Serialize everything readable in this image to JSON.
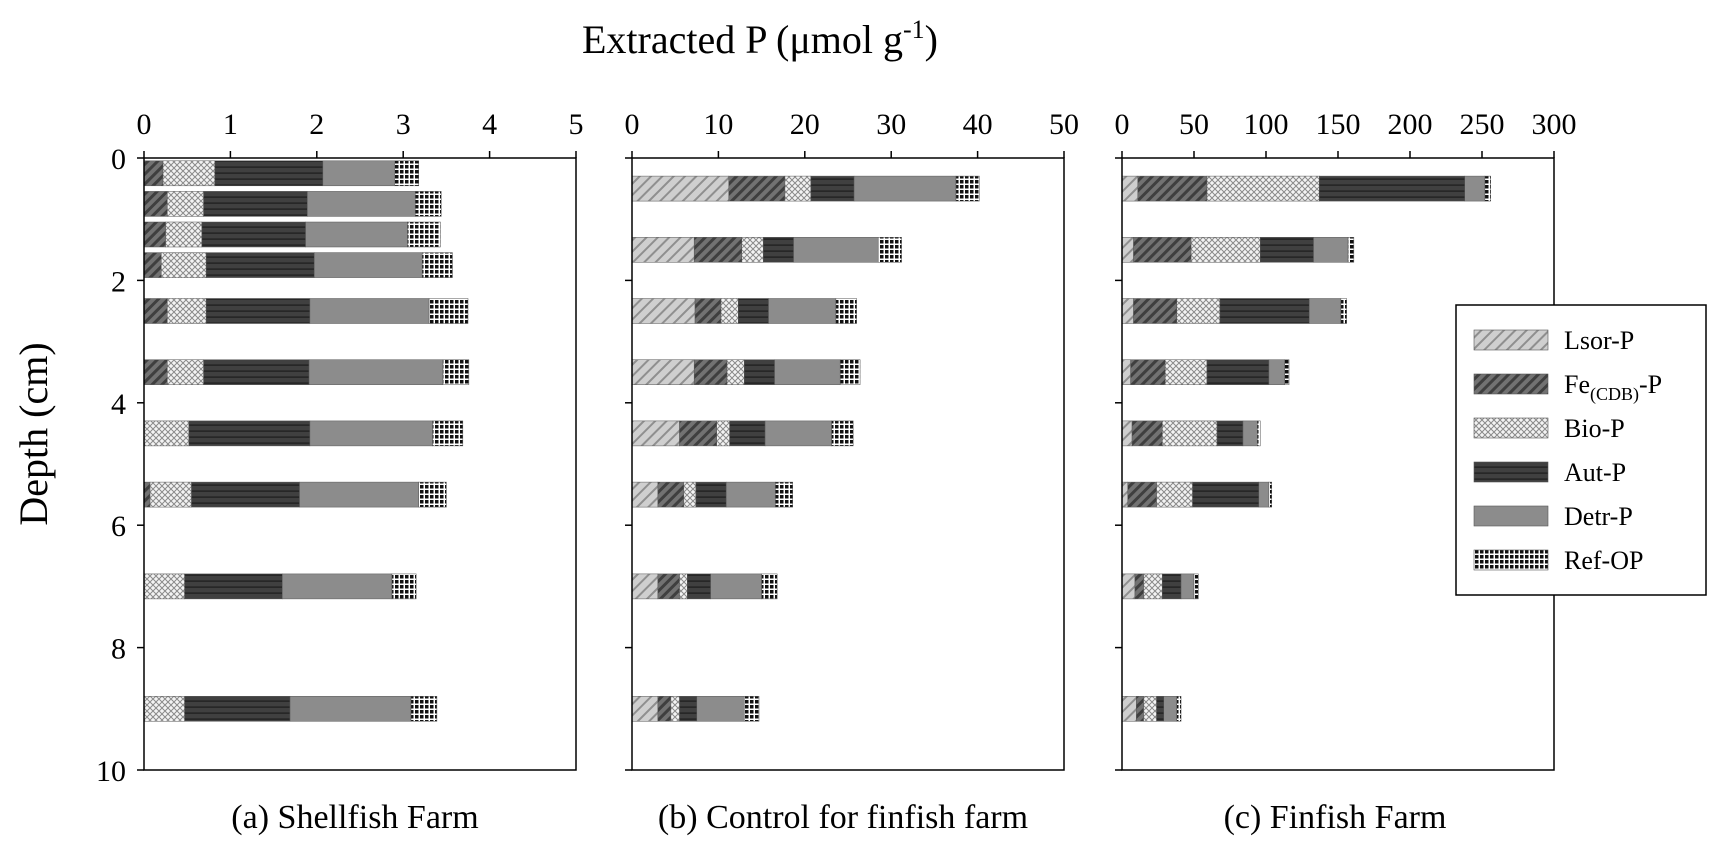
{
  "figure": {
    "title_main": "Extracted P (μmol g",
    "title_sup": "-1",
    "title_close": ")",
    "ylabel": "Depth (cm)"
  },
  "legend": [
    {
      "key": "lsor",
      "prefix": "Lsor-P",
      "sub": "",
      "suffix": ""
    },
    {
      "key": "fe",
      "prefix": "Fe",
      "sub": "(CDB)",
      "suffix": "-P"
    },
    {
      "key": "bio",
      "prefix": "Bio-P",
      "sub": "",
      "suffix": ""
    },
    {
      "key": "aut",
      "prefix": "Aut-P",
      "sub": "",
      "suffix": ""
    },
    {
      "key": "detr",
      "prefix": "Detr-P",
      "sub": "",
      "suffix": ""
    },
    {
      "key": "ref",
      "prefix": "Ref-OP",
      "sub": "",
      "suffix": ""
    }
  ],
  "colors": {
    "lsor": "#c8c8c8",
    "fe": "#6e6e6e",
    "bio": "#f0f0f0",
    "aut": "#3c3c3c",
    "detr": "#8a8a8a",
    "ref": "#1a1a1a"
  },
  "chart_data": [
    {
      "type": "bar",
      "orientation": "horizontal",
      "stacked": true,
      "label": "(a) Shellfish Farm",
      "xlim": [
        0,
        5
      ],
      "xticks": [
        "0",
        "1",
        "2",
        "3",
        "4",
        "5"
      ],
      "ylim": [
        0,
        10
      ],
      "yticks": [
        "0",
        "2",
        "4",
        "6",
        "8",
        "10"
      ],
      "series_order": [
        "Lsor-P",
        "Fe(CDB)-P",
        "Bio-P",
        "Aut-P",
        "Detr-P",
        "Ref-OP"
      ],
      "depths": [
        0.25,
        0.75,
        1.25,
        1.75,
        2.5,
        3.5,
        4.5,
        5.5,
        7.0,
        9.0
      ],
      "values": [
        [
          0.0,
          0.22,
          0.6,
          1.25,
          0.83,
          0.28
        ],
        [
          0.0,
          0.27,
          0.42,
          1.2,
          1.25,
          0.3
        ],
        [
          0.0,
          0.25,
          0.42,
          1.2,
          1.18,
          0.38
        ],
        [
          0.0,
          0.2,
          0.52,
          1.25,
          1.25,
          0.35
        ],
        [
          0.0,
          0.27,
          0.45,
          1.2,
          1.38,
          0.45
        ],
        [
          0.0,
          0.27,
          0.42,
          1.22,
          1.55,
          0.3
        ],
        [
          0.0,
          0.0,
          0.52,
          1.4,
          1.42,
          0.35
        ],
        [
          0.0,
          0.07,
          0.48,
          1.25,
          1.38,
          0.32
        ],
        [
          0.0,
          0.0,
          0.47,
          1.13,
          1.27,
          0.28
        ],
        [
          0.0,
          0.0,
          0.47,
          1.22,
          1.4,
          0.3
        ]
      ]
    },
    {
      "type": "bar",
      "orientation": "horizontal",
      "stacked": true,
      "label": "(b) Control for finfish farm",
      "xlim": [
        0,
        50
      ],
      "xticks": [
        "0",
        "10",
        "20",
        "30",
        "40",
        "50"
      ],
      "ylim": [
        0,
        10
      ],
      "yticks": [
        "0",
        "2",
        "4",
        "6",
        "8",
        "10"
      ],
      "series_order": [
        "Lsor-P",
        "Fe(CDB)-P",
        "Bio-P",
        "Aut-P",
        "Detr-P",
        "Ref-OP"
      ],
      "depths": [
        0.5,
        1.5,
        2.5,
        3.5,
        4.5,
        5.5,
        7.0,
        9.0
      ],
      "values": [
        [
          11.2,
          6.5,
          3.0,
          5.0,
          11.8,
          2.7
        ],
        [
          7.2,
          5.5,
          2.5,
          3.5,
          9.8,
          2.7
        ],
        [
          7.3,
          3.0,
          2.0,
          3.5,
          7.8,
          2.4
        ],
        [
          7.2,
          3.8,
          2.0,
          3.5,
          7.6,
          2.3
        ],
        [
          5.5,
          4.3,
          1.5,
          4.1,
          7.7,
          2.5
        ],
        [
          3.0,
          3.0,
          1.4,
          3.5,
          5.7,
          2.0
        ],
        [
          3.0,
          2.5,
          0.9,
          2.7,
          5.9,
          1.8
        ],
        [
          3.0,
          1.5,
          1.0,
          2.0,
          5.5,
          1.7
        ]
      ]
    },
    {
      "type": "bar",
      "orientation": "horizontal",
      "stacked": true,
      "label": "(c) Finfish Farm",
      "xlim": [
        0,
        300
      ],
      "xticks": [
        "0",
        "50",
        "100",
        "150",
        "200",
        "250",
        "300"
      ],
      "ylim": [
        0,
        10
      ],
      "yticks": [
        "0",
        "2",
        "4",
        "6",
        "8",
        "10"
      ],
      "series_order": [
        "Lsor-P",
        "Fe(CDB)-P",
        "Bio-P",
        "Aut-P",
        "Detr-P",
        "Ref-OP"
      ],
      "depths": [
        0.5,
        1.5,
        2.5,
        3.5,
        4.5,
        5.5,
        7.0,
        9.0
      ],
      "values": [
        [
          11.0,
          48.0,
          78.0,
          101.0,
          14.0,
          4.0
        ],
        [
          8.0,
          40.0,
          48.0,
          37.0,
          24.0,
          4.0
        ],
        [
          8.0,
          30.0,
          30.0,
          62.0,
          22.0,
          4.0
        ],
        [
          6.0,
          24.0,
          29.0,
          43.0,
          11.0,
          3.0
        ],
        [
          7.0,
          21.0,
          38.0,
          18.0,
          10.0,
          2.0
        ],
        [
          4.0,
          20.0,
          25.0,
          46.0,
          7.0,
          2.0
        ],
        [
          9.0,
          6.0,
          13.0,
          13.0,
          9.0,
          3.0
        ],
        [
          10.0,
          5.0,
          9.0,
          5.0,
          9.0,
          3.0
        ]
      ]
    }
  ]
}
